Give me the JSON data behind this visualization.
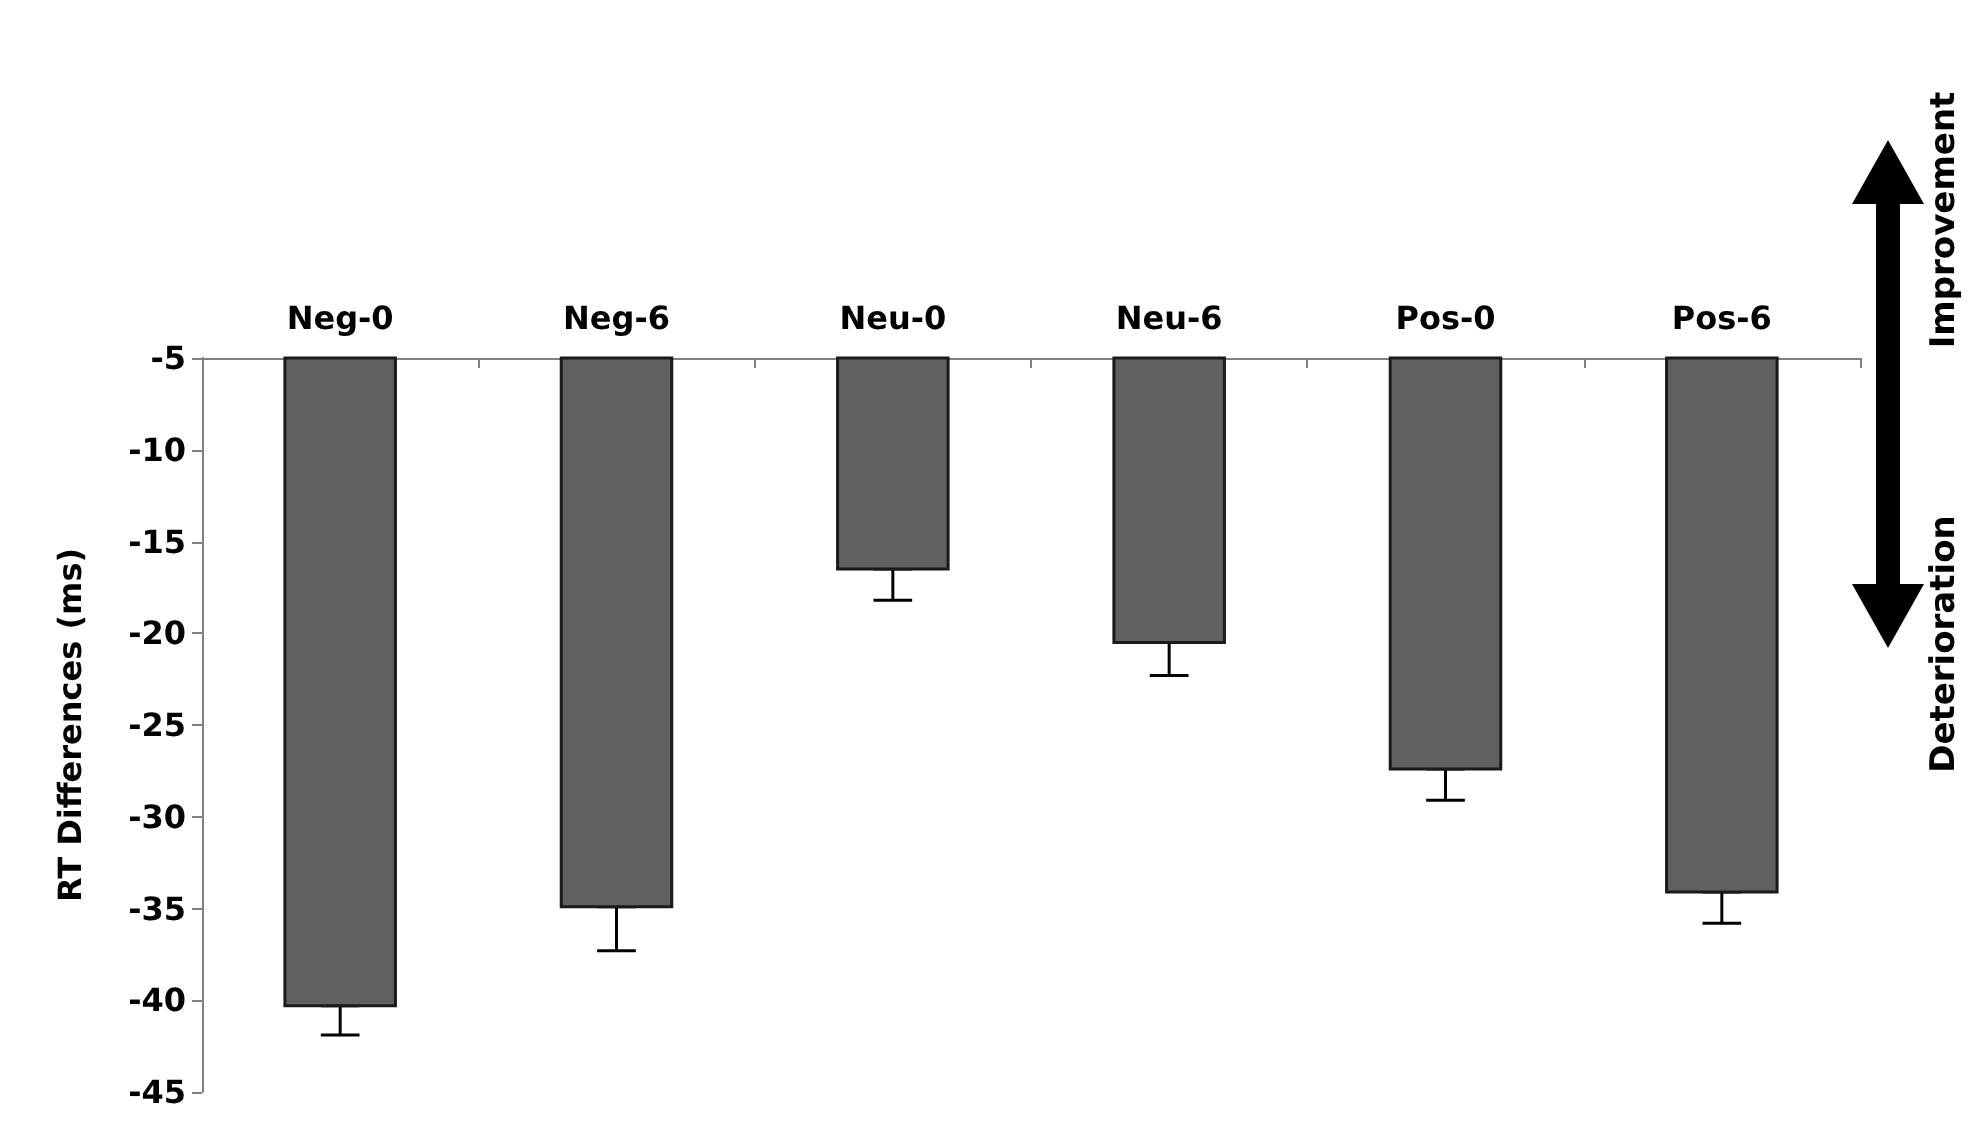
{
  "chart_data": {
    "type": "bar",
    "ylabel": "RT Differences (ms)",
    "categories": [
      "Neg-0",
      "Neg-6",
      "Neu-0",
      "Neu-6",
      "Pos-0",
      "Pos-6"
    ],
    "values": [
      -40.3,
      -34.9,
      -16.5,
      -20.5,
      -27.4,
      -34.1
    ],
    "errors": [
      [
        -41.9,
        -40.3
      ],
      [
        -37.3,
        -34.9
      ],
      [
        -18.2,
        -16.5
      ],
      [
        -22.3,
        -20.5
      ],
      [
        -29.1,
        -27.4
      ],
      [
        -35.8,
        -34.1
      ]
    ],
    "color": "#606060",
    "ylim": [
      -45,
      -5
    ],
    "yticks": [
      -45,
      -40,
      -35,
      -30,
      -25,
      -20,
      -15,
      -10,
      -5
    ],
    "grid": false,
    "legend": false,
    "annotations": [
      "Improvement",
      "Deterioration"
    ]
  }
}
